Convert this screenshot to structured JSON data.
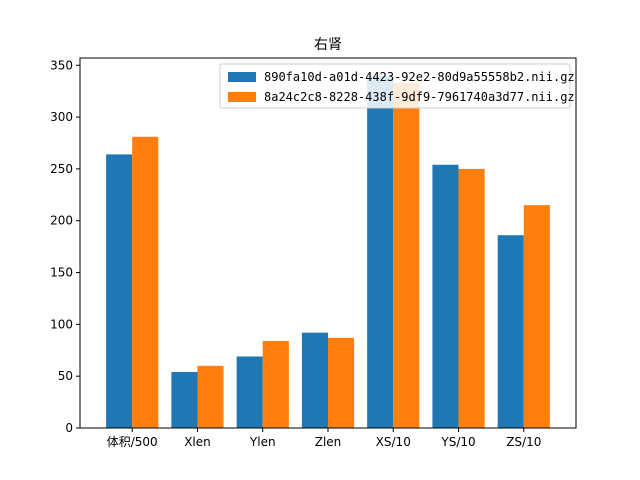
{
  "chart_data": {
    "type": "bar",
    "title": "右肾",
    "xlabel": "",
    "ylabel": "",
    "categories": [
      "体积/500",
      "Xlen",
      "Ylen",
      "Zlen",
      "XS/10",
      "YS/10",
      "ZS/10"
    ],
    "series": [
      {
        "name": "890fa10d-a01d-4423-92e2-80d9a55558b2.nii.gz",
        "color": "#1f77b4",
        "values": [
          264,
          54,
          69,
          92,
          340,
          254,
          186
        ]
      },
      {
        "name": "8a24c2c8-8228-438f-9df9-7961740a3d77.nii.gz",
        "color": "#ff7f0e",
        "values": [
          281,
          60,
          84,
          87,
          333,
          250,
          215
        ]
      }
    ],
    "ylim": [
      0,
      357
    ],
    "yticks": [
      0,
      50,
      100,
      150,
      200,
      250,
      300,
      350
    ],
    "legend_position": "top-right",
    "grid": false
  }
}
